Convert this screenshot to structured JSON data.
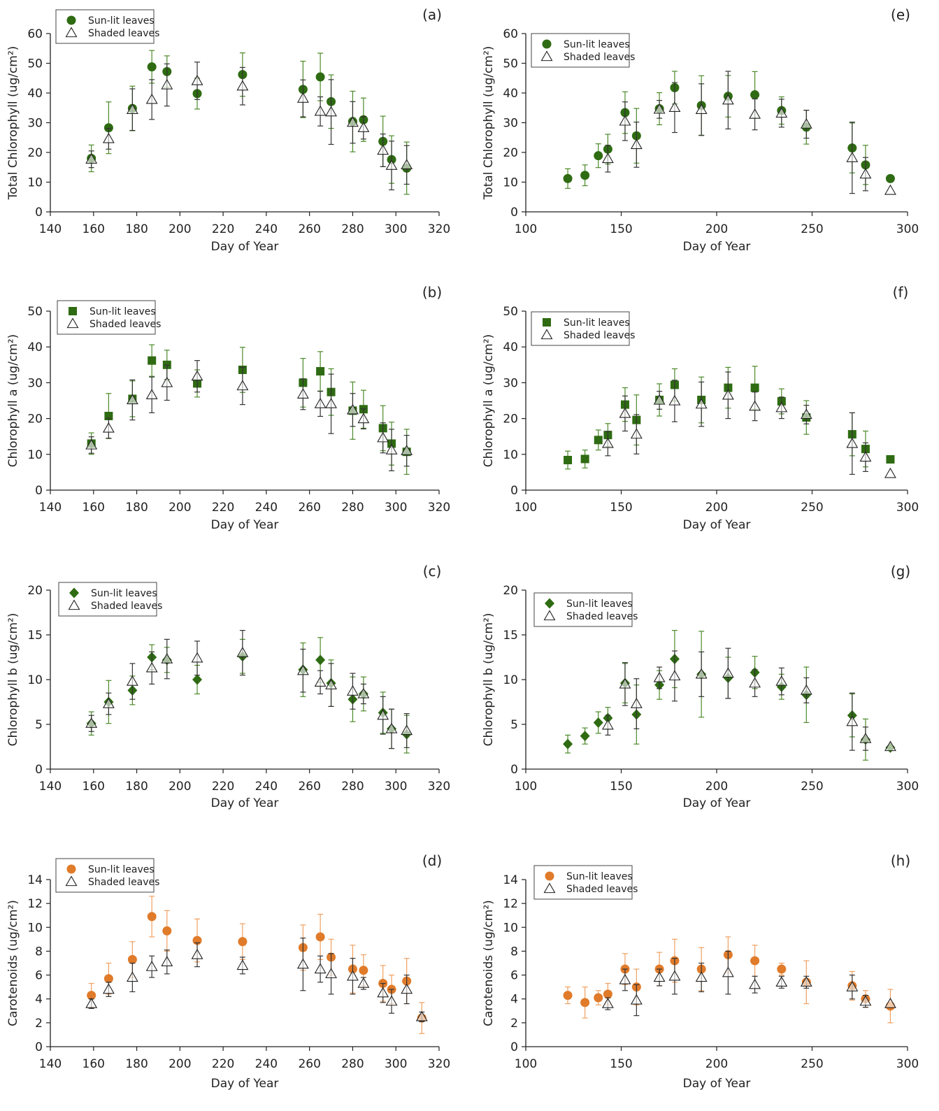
{
  "legend": {
    "sunlit": "Sun-lit leaves",
    "shaded": "Shaded leaves"
  },
  "colors": {
    "green": "#2e6b12",
    "orange": "#e07b2a",
    "errgreen": "#4c8a2a",
    "errorange": "#f0a060",
    "axis": "#222222"
  },
  "chart_data": [
    {
      "id": "a",
      "panel_label": "(a)",
      "type": "scatter",
      "marker": "circle",
      "color": "green",
      "xlabel": "Day of Year",
      "ylabel": "Total Chlorophyll (ug/cm²)",
      "xlim": [
        140,
        320
      ],
      "xticks": [
        140,
        160,
        180,
        200,
        220,
        240,
        260,
        280,
        300,
        320
      ],
      "ylim": [
        0,
        60
      ],
      "yticks": [
        0,
        10,
        20,
        30,
        40,
        50,
        60
      ],
      "grid": false,
      "legend_position": "top-left",
      "series": [
        {
          "name": "Sun-lit leaves",
          "x": [
            159,
            167,
            178,
            187,
            194,
            208,
            229,
            257,
            265,
            270,
            280,
            285,
            294,
            298,
            305
          ],
          "y": [
            18,
            28.3,
            34.8,
            48.8,
            47.2,
            39.8,
            46.2,
            41.2,
            45.4,
            37.1,
            30.4,
            31,
            23.7,
            17.6,
            14.7
          ],
          "err": [
            4.5,
            8.7,
            7.5,
            5.5,
            5.3,
            5.2,
            7.3,
            9.5,
            8,
            9,
            10.2,
            7.3,
            8.5,
            8,
            8.8
          ]
        },
        {
          "name": "Shaded leaves",
          "x": [
            159,
            167,
            178,
            187,
            194,
            208,
            229,
            257,
            265,
            270,
            280,
            285,
            294,
            298,
            305
          ],
          "y": [
            17.7,
            24.6,
            34.4,
            37.8,
            42.7,
            44.1,
            42.3,
            38.2,
            33.8,
            33.6,
            30.1,
            28.3,
            20.7,
            15.6,
            15.8
          ],
          "err": [
            2.8,
            3.5,
            7,
            6.7,
            7.1,
            6.3,
            6.3,
            6.2,
            4.9,
            10.9,
            7,
            3.8,
            5.5,
            8.2,
            6.5
          ]
        }
      ]
    },
    {
      "id": "b",
      "panel_label": "(b)",
      "type": "scatter",
      "marker": "square",
      "color": "green",
      "xlabel": "Day of Year",
      "ylabel": "Chlorophyll a (ug/cm²)",
      "xlim": [
        140,
        320
      ],
      "xticks": [
        140,
        160,
        180,
        200,
        220,
        240,
        260,
        280,
        300,
        320
      ],
      "ylim": [
        0,
        50
      ],
      "yticks": [
        0,
        10,
        20,
        30,
        40,
        50
      ],
      "grid": false,
      "legend_position": "top-left",
      "series": [
        {
          "name": "Sun-lit leaves",
          "x": [
            159,
            167,
            178,
            187,
            194,
            208,
            229,
            257,
            265,
            270,
            280,
            285,
            294,
            298,
            305
          ],
          "y": [
            13,
            20.7,
            25.5,
            36.2,
            35,
            29.8,
            33.6,
            30,
            33.2,
            27.4,
            22.2,
            22.6,
            17.3,
            13,
            10.7
          ],
          "err": [
            3,
            6.3,
            5,
            4.4,
            4.1,
            3.8,
            6.3,
            6.8,
            5.5,
            6.5,
            8,
            5.3,
            6.3,
            6,
            6.3
          ]
        },
        {
          "name": "Shaded leaves",
          "x": [
            159,
            167,
            178,
            187,
            194,
            208,
            229,
            257,
            265,
            270,
            280,
            285,
            294,
            298,
            305
          ],
          "y": [
            12.6,
            17.3,
            25.2,
            26.6,
            30,
            31.8,
            29.1,
            26.8,
            24.1,
            24.1,
            22.4,
            19.9,
            14.6,
            11.2,
            11
          ],
          "err": [
            2.3,
            2.8,
            5.6,
            5,
            4.9,
            4.4,
            5.2,
            4.3,
            3.5,
            8.3,
            4.6,
            2.8,
            4.2,
            5.8,
            4.3
          ]
        }
      ]
    },
    {
      "id": "c",
      "panel_label": "(c)",
      "type": "scatter",
      "marker": "diamond",
      "color": "green",
      "xlabel": "Day of Year",
      "ylabel": "Chlorophyll b (ug/cm²)",
      "xlim": [
        140,
        320
      ],
      "xticks": [
        140,
        160,
        180,
        200,
        220,
        240,
        260,
        280,
        300,
        320
      ],
      "ylim": [
        0,
        20
      ],
      "yticks": [
        0,
        5,
        10,
        15,
        20
      ],
      "grid": false,
      "legend_position": "top-left",
      "series": [
        {
          "name": "Sun-lit leaves",
          "x": [
            159,
            167,
            178,
            187,
            194,
            208,
            229,
            257,
            265,
            270,
            280,
            285,
            294,
            298,
            305
          ],
          "y": [
            5.1,
            7.5,
            8.8,
            12.5,
            12.2,
            10,
            12.6,
            11.1,
            12.2,
            9.6,
            7.8,
            8.4,
            6.3,
            4.5,
            3.9
          ],
          "err": [
            1.3,
            2.4,
            1.6,
            1.4,
            1.4,
            1.6,
            1.9,
            3,
            2.5,
            2.6,
            2.5,
            1.9,
            2.3,
            2.2,
            2.1
          ]
        },
        {
          "name": "Shaded leaves",
          "x": [
            159,
            167,
            178,
            187,
            194,
            208,
            229,
            257,
            265,
            270,
            280,
            285,
            294,
            298,
            305
          ],
          "y": [
            5.1,
            7.3,
            9.8,
            11.3,
            12.3,
            12.4,
            13,
            11,
            9.7,
            9.4,
            8.7,
            8.4,
            6,
            4.5,
            4.3
          ],
          "err": [
            0.9,
            1.2,
            2,
            1.8,
            2.2,
            1.9,
            2.5,
            2.4,
            1.3,
            2.4,
            2,
            1.1,
            2.1,
            2.2,
            1.9
          ]
        }
      ]
    },
    {
      "id": "d",
      "panel_label": "(d)",
      "type": "scatter",
      "marker": "circle",
      "color": "orange",
      "xlabel": "Day of Year",
      "ylabel": "Carotenoids (ug/cm²)",
      "xlim": [
        140,
        320
      ],
      "xticks": [
        140,
        160,
        180,
        200,
        220,
        240,
        260,
        280,
        300,
        320
      ],
      "ylim": [
        0,
        14
      ],
      "yticks": [
        0,
        2,
        4,
        6,
        8,
        10,
        12,
        14
      ],
      "grid": false,
      "legend_position": "top-left",
      "series": [
        {
          "name": "Sun-lit leaves",
          "x": [
            159,
            167,
            178,
            187,
            194,
            208,
            229,
            257,
            265,
            270,
            280,
            285,
            294,
            298,
            305,
            312
          ],
          "y": [
            4.3,
            5.7,
            7.3,
            10.9,
            9.7,
            8.9,
            8.8,
            8.3,
            9.2,
            7.5,
            6.5,
            6.4,
            5.3,
            4.8,
            5.5,
            2.4
          ],
          "err": [
            1,
            1.3,
            1.5,
            1.7,
            1.7,
            1.8,
            1.5,
            1.9,
            1.9,
            1.5,
            2,
            1.3,
            1.5,
            1.2,
            1.9,
            1.3
          ]
        },
        {
          "name": "Shaded leaves",
          "x": [
            159,
            167,
            178,
            187,
            194,
            208,
            229,
            257,
            265,
            270,
            280,
            285,
            294,
            298,
            305,
            312
          ],
          "y": [
            3.6,
            4.8,
            5.8,
            6.7,
            7.1,
            7.7,
            6.8,
            6.9,
            6.5,
            6.1,
            5.9,
            5.3,
            4.5,
            3.8,
            4.8,
            2.5
          ],
          "err": [
            0.4,
            0.6,
            1.2,
            0.9,
            1,
            1,
            0.7,
            2.2,
            1.1,
            1.7,
            1.5,
            0.5,
            0.8,
            1,
            1.2,
            0.4
          ]
        }
      ]
    },
    {
      "id": "e",
      "panel_label": "(e)",
      "type": "scatter",
      "marker": "circle",
      "color": "green",
      "xlabel": "Day of Year",
      "ylabel": "Total Chlorophyll (ug/cm²)",
      "xlim": [
        100,
        300
      ],
      "xticks": [
        100,
        150,
        200,
        250,
        300
      ],
      "ylim": [
        0,
        60
      ],
      "yticks": [
        0,
        10,
        20,
        30,
        40,
        50,
        60
      ],
      "grid": false,
      "legend_position": "top-left",
      "series": [
        {
          "name": "Sun-lit leaves",
          "x": [
            122,
            131,
            138,
            143,
            152,
            158,
            170,
            178,
            192,
            206,
            220,
            234,
            247,
            271,
            278,
            291
          ],
          "y": [
            11.2,
            12.3,
            18.9,
            21.1,
            33.4,
            25.6,
            34.7,
            41.8,
            35.8,
            38.9,
            39.4,
            34.1,
            28.5,
            21.5,
            15.8,
            11.2
          ],
          "err": [
            3.3,
            3.5,
            4,
            5,
            7,
            9.2,
            5.4,
            5.5,
            10,
            7,
            7.8,
            4.6,
            5.7,
            8.4,
            6.6,
            0
          ]
        },
        {
          "name": "Shaded leaves",
          "x": [
            143,
            152,
            158,
            170,
            178,
            192,
            206,
            220,
            234,
            247,
            271,
            278,
            291
          ],
          "y": [
            17.9,
            30.5,
            22.6,
            34.5,
            35.1,
            34.4,
            37.6,
            32.8,
            33.2,
            29.5,
            18.2,
            12.7,
            7.2
          ],
          "err": [
            4.5,
            6.5,
            7.6,
            3,
            8.4,
            8.7,
            9.7,
            5.2,
            4.7,
            4.7,
            12,
            5.6,
            0
          ]
        }
      ]
    },
    {
      "id": "f",
      "panel_label": "(f)",
      "type": "scatter",
      "marker": "square",
      "color": "green",
      "xlabel": "Day of Year",
      "ylabel": "Chlorophyll a (ug/cm²)",
      "xlim": [
        100,
        300
      ],
      "xticks": [
        100,
        150,
        200,
        250,
        300
      ],
      "ylim": [
        0,
        50
      ],
      "yticks": [
        0,
        10,
        20,
        30,
        40,
        50
      ],
      "grid": false,
      "legend_position": "top-left",
      "series": [
        {
          "name": "Sun-lit leaves",
          "x": [
            122,
            131,
            138,
            143,
            152,
            158,
            170,
            178,
            192,
            206,
            220,
            234,
            247,
            271,
            278,
            291
          ],
          "y": [
            8.4,
            8.7,
            14,
            15.4,
            23.9,
            19.6,
            25.2,
            29.4,
            25.2,
            28.6,
            28.6,
            24.8,
            20.3,
            15.6,
            11.5,
            8.6
          ],
          "err": [
            2.5,
            2.5,
            2.8,
            3.2,
            4.7,
            7,
            4.5,
            4.5,
            6.4,
            5.7,
            6,
            3.5,
            4.7,
            6,
            5,
            0
          ]
        },
        {
          "name": "Shaded leaves",
          "x": [
            143,
            152,
            158,
            170,
            178,
            192,
            206,
            220,
            234,
            247,
            271,
            278,
            291
          ],
          "y": [
            13,
            21.4,
            15.6,
            25.1,
            24.9,
            24,
            26.5,
            23.4,
            23,
            21.1,
            13,
            9.2,
            4.6
          ],
          "err": [
            3.4,
            4.9,
            5.5,
            2.5,
            5.8,
            6.2,
            6.5,
            4,
            3,
            2.6,
            8.6,
            4,
            0
          ]
        }
      ]
    },
    {
      "id": "g",
      "panel_label": "(g)",
      "type": "scatter",
      "marker": "diamond",
      "color": "green",
      "xlabel": "Day of Year",
      "ylabel": "Chlorophyll b (ug/cm²)",
      "xlim": [
        100,
        300
      ],
      "xticks": [
        100,
        150,
        200,
        250,
        300
      ],
      "ylim": [
        0,
        20
      ],
      "yticks": [
        0,
        5,
        10,
        15,
        20
      ],
      "grid": false,
      "legend_position": "top-left",
      "series": [
        {
          "name": "Sun-lit leaves",
          "x": [
            122,
            131,
            138,
            143,
            152,
            158,
            170,
            178,
            192,
            206,
            220,
            234,
            247,
            271,
            278,
            291
          ],
          "y": [
            2.8,
            3.7,
            5.2,
            5.7,
            9.6,
            6.1,
            9.4,
            12.3,
            10.6,
            10.2,
            10.8,
            9.2,
            8.3,
            6,
            3.3,
            2.4
          ],
          "err": [
            1,
            0.9,
            1.2,
            1.2,
            2.2,
            3.3,
            1.6,
            3.2,
            4.8,
            2.3,
            1.8,
            1.4,
            3.1,
            2.4,
            2.3,
            0
          ]
        },
        {
          "name": "Shaded leaves",
          "x": [
            143,
            152,
            158,
            170,
            178,
            192,
            206,
            220,
            234,
            247,
            271,
            278,
            291
          ],
          "y": [
            4.9,
            9.5,
            7.3,
            10.2,
            10.4,
            10.6,
            10.7,
            9.6,
            9.8,
            8.8,
            5.3,
            3.4,
            2.5
          ],
          "err": [
            1.1,
            2.4,
            2.8,
            1.2,
            2.8,
            2.5,
            2.8,
            1.5,
            1.5,
            1.4,
            3.2,
            1.3,
            0
          ]
        }
      ]
    },
    {
      "id": "h",
      "panel_label": "(h)",
      "type": "scatter",
      "marker": "circle",
      "color": "orange",
      "xlabel": "Day of Year",
      "ylabel": "Carotenoids (ug/cm²)",
      "xlim": [
        100,
        300
      ],
      "xticks": [
        100,
        150,
        200,
        250,
        300
      ],
      "ylim": [
        0,
        14
      ],
      "yticks": [
        0,
        2,
        4,
        6,
        8,
        10,
        12,
        14
      ],
      "grid": false,
      "legend_position": "top-left",
      "series": [
        {
          "name": "Sun-lit leaves",
          "x": [
            122,
            131,
            138,
            143,
            152,
            158,
            170,
            178,
            192,
            206,
            220,
            234,
            247,
            271,
            278,
            291
          ],
          "y": [
            4.3,
            3.7,
            4.1,
            4.4,
            6.5,
            5,
            6.5,
            7.2,
            6.5,
            7.7,
            7.2,
            6.5,
            5.4,
            5.1,
            4,
            3.4
          ],
          "err": [
            0.7,
            1.3,
            0.6,
            0.9,
            1.3,
            1.5,
            1.4,
            1.8,
            1.8,
            1.5,
            1.3,
            0.5,
            1.8,
            1.2,
            0.7,
            1.4
          ]
        },
        {
          "name": "Shaded leaves",
          "x": [
            143,
            152,
            158,
            170,
            178,
            192,
            206,
            220,
            234,
            247,
            271,
            278,
            291
          ],
          "y": [
            3.6,
            5.6,
            3.9,
            5.8,
            5.9,
            5.8,
            6.2,
            5.2,
            5.4,
            5.4,
            5,
            3.8,
            3.6
          ],
          "err": [
            0.5,
            0.9,
            1.3,
            0.7,
            1.5,
            1.2,
            1.8,
            0.7,
            0.5,
            0.5,
            1,
            0.5,
            0
          ]
        }
      ]
    }
  ]
}
